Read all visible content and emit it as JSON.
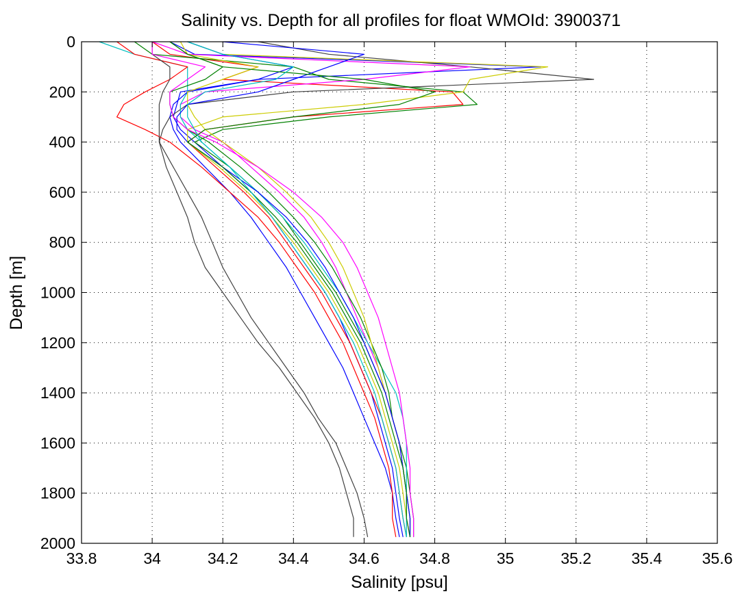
{
  "chart_data": {
    "type": "line",
    "title": "Salinity vs. Depth for all profiles for float WMOId: 3900371",
    "xlabel": "Salinity [psu]",
    "ylabel": "Depth [m]",
    "xlim": [
      33.8,
      35.6
    ],
    "ylim": [
      0,
      2000
    ],
    "y_reversed": true,
    "grid": "dotted",
    "legend": "none",
    "xticks": [
      "33.8",
      "34",
      "34.2",
      "34.4",
      "34.6",
      "34.8",
      "35",
      "35.2",
      "35.4",
      "35.6"
    ],
    "yticks": [
      "0",
      "200",
      "400",
      "600",
      "800",
      "1000",
      "1200",
      "1400",
      "1600",
      "1800",
      "2000"
    ],
    "depths": [
      0,
      50,
      100,
      150,
      200,
      250,
      300,
      350,
      400,
      500,
      600,
      700,
      800,
      900,
      1000,
      1100,
      1200,
      1300,
      1400,
      1500,
      1600,
      1700,
      1800,
      1900,
      1975
    ],
    "series": [
      {
        "color": "#0000ff",
        "values": [
          34.05,
          34.12,
          35.1,
          34.3,
          34.08,
          34.07,
          34.06,
          34.08,
          34.12,
          34.2,
          34.28,
          34.34,
          34.39,
          34.44,
          34.49,
          34.53,
          34.56,
          34.59,
          34.62,
          34.64,
          34.66,
          34.68,
          34.69,
          34.7,
          34.71
        ]
      },
      {
        "color": "#ff0000",
        "values": [
          34.0,
          34.05,
          34.3,
          34.2,
          34.85,
          34.88,
          34.4,
          34.15,
          34.1,
          34.18,
          34.26,
          34.33,
          34.38,
          34.43,
          34.48,
          34.52,
          34.56,
          34.59,
          34.62,
          34.65,
          34.67,
          34.69,
          34.7,
          34.71,
          34.72
        ]
      },
      {
        "color": "#008000",
        "values": [
          33.95,
          34.0,
          34.4,
          34.5,
          34.88,
          34.92,
          34.5,
          34.2,
          34.12,
          34.22,
          34.3,
          34.37,
          34.42,
          34.47,
          34.52,
          34.56,
          34.6,
          34.63,
          34.66,
          34.68,
          34.7,
          34.72,
          34.73,
          34.74,
          34.74
        ]
      },
      {
        "color": "#404040",
        "values": [
          34.3,
          34.5,
          34.9,
          35.25,
          34.4,
          34.1,
          34.05,
          34.03,
          34.02,
          34.06,
          34.1,
          34.14,
          34.17,
          34.2,
          34.24,
          34.28,
          34.33,
          34.38,
          34.43,
          34.47,
          34.52,
          34.55,
          34.58,
          34.6,
          34.61
        ]
      },
      {
        "color": "#cccc00",
        "values": [
          34.1,
          34.2,
          35.12,
          34.9,
          34.88,
          34.6,
          34.2,
          34.1,
          34.1,
          34.19,
          34.27,
          34.34,
          34.4,
          34.45,
          34.5,
          34.54,
          34.58,
          34.61,
          34.64,
          34.66,
          34.68,
          34.7,
          34.71,
          34.72,
          34.73
        ]
      },
      {
        "color": "#ff00ff",
        "values": [
          34.0,
          34.1,
          34.9,
          34.6,
          34.15,
          34.08,
          34.08,
          34.12,
          34.2,
          34.28,
          34.36,
          34.43,
          34.48,
          34.52,
          34.55,
          34.58,
          34.61,
          34.64,
          34.66,
          34.68,
          34.7,
          34.71,
          34.72,
          34.72,
          34.73
        ]
      },
      {
        "color": "#00bfbf",
        "values": [
          33.85,
          33.95,
          34.1,
          34.1,
          34.1,
          34.08,
          34.08,
          34.1,
          34.14,
          34.22,
          34.3,
          34.37,
          34.43,
          34.48,
          34.53,
          34.57,
          34.61,
          34.65,
          34.69,
          34.71,
          34.72,
          34.72,
          34.72,
          34.72,
          34.72
        ]
      },
      {
        "color": "#0000ff",
        "values": [
          34.1,
          34.2,
          34.4,
          34.3,
          34.1,
          34.06,
          34.05,
          34.06,
          34.08,
          34.15,
          34.22,
          34.28,
          34.33,
          34.38,
          34.42,
          34.46,
          34.5,
          34.54,
          34.57,
          34.6,
          34.63,
          34.66,
          34.68,
          34.69,
          34.7
        ]
      },
      {
        "color": "#ff0000",
        "values": [
          33.9,
          33.95,
          34.1,
          34.05,
          33.98,
          33.92,
          33.9,
          33.98,
          34.05,
          34.14,
          34.22,
          34.3,
          34.36,
          34.41,
          34.46,
          34.5,
          34.54,
          34.57,
          34.6,
          34.63,
          34.65,
          34.67,
          34.68,
          34.68,
          34.69
        ]
      },
      {
        "color": "#008000",
        "values": [
          34.05,
          34.1,
          34.2,
          34.15,
          34.05,
          34.05,
          34.06,
          34.1,
          34.16,
          34.25,
          34.33,
          34.4,
          34.46,
          34.51,
          34.55,
          34.59,
          34.62,
          34.65,
          34.67,
          34.68,
          34.7,
          34.71,
          34.72,
          34.73,
          34.73
        ]
      },
      {
        "color": "#404040",
        "values": [
          34.0,
          34.0,
          34.05,
          34.05,
          34.03,
          34.02,
          34.02,
          34.02,
          34.02,
          34.04,
          34.07,
          34.1,
          34.12,
          34.15,
          34.2,
          34.25,
          34.3,
          34.36,
          34.41,
          34.46,
          34.5,
          34.53,
          34.55,
          34.57,
          34.57
        ]
      },
      {
        "color": "#cccc00",
        "values": [
          34.08,
          34.1,
          34.3,
          34.2,
          34.1,
          34.1,
          34.12,
          34.15,
          34.2,
          34.3,
          34.38,
          34.45,
          34.5,
          34.54,
          34.57,
          34.6,
          34.62,
          34.64,
          34.66,
          34.68,
          34.7,
          34.71,
          34.72,
          34.73,
          34.73
        ]
      },
      {
        "color": "#ff00ff",
        "values": [
          34.0,
          34.0,
          34.15,
          34.1,
          34.05,
          34.05,
          34.06,
          34.1,
          34.18,
          34.3,
          34.4,
          34.48,
          34.54,
          34.58,
          34.61,
          34.64,
          34.66,
          34.68,
          34.7,
          34.71,
          34.72,
          34.73,
          34.73,
          34.74,
          34.74
        ]
      },
      {
        "color": "#0000ff",
        "values": [
          34.2,
          34.6,
          34.5,
          34.4,
          34.3,
          34.1,
          34.07,
          34.07,
          34.1,
          34.2,
          34.3,
          34.38,
          34.44,
          34.49,
          34.53,
          34.57,
          34.6,
          34.63,
          34.66,
          34.68,
          34.7,
          34.71,
          34.72,
          34.73,
          34.73
        ]
      },
      {
        "color": "#008000",
        "values": [
          34.05,
          34.1,
          34.2,
          34.6,
          34.8,
          34.7,
          34.4,
          34.15,
          34.1,
          34.2,
          34.28,
          34.35,
          34.41,
          34.46,
          34.51,
          34.55,
          34.59,
          34.62,
          34.65,
          34.67,
          34.69,
          34.71,
          34.72,
          34.72,
          34.73
        ]
      },
      {
        "color": "#00bfbf",
        "values": [
          34.1,
          34.2,
          34.4,
          34.35,
          34.15,
          34.1,
          34.1,
          34.12,
          34.14,
          34.22,
          34.28,
          34.34,
          34.39,
          34.44,
          34.49,
          34.53,
          34.57,
          34.6,
          34.63,
          34.65,
          34.67,
          34.69,
          34.7,
          34.71,
          34.72
        ]
      }
    ]
  }
}
